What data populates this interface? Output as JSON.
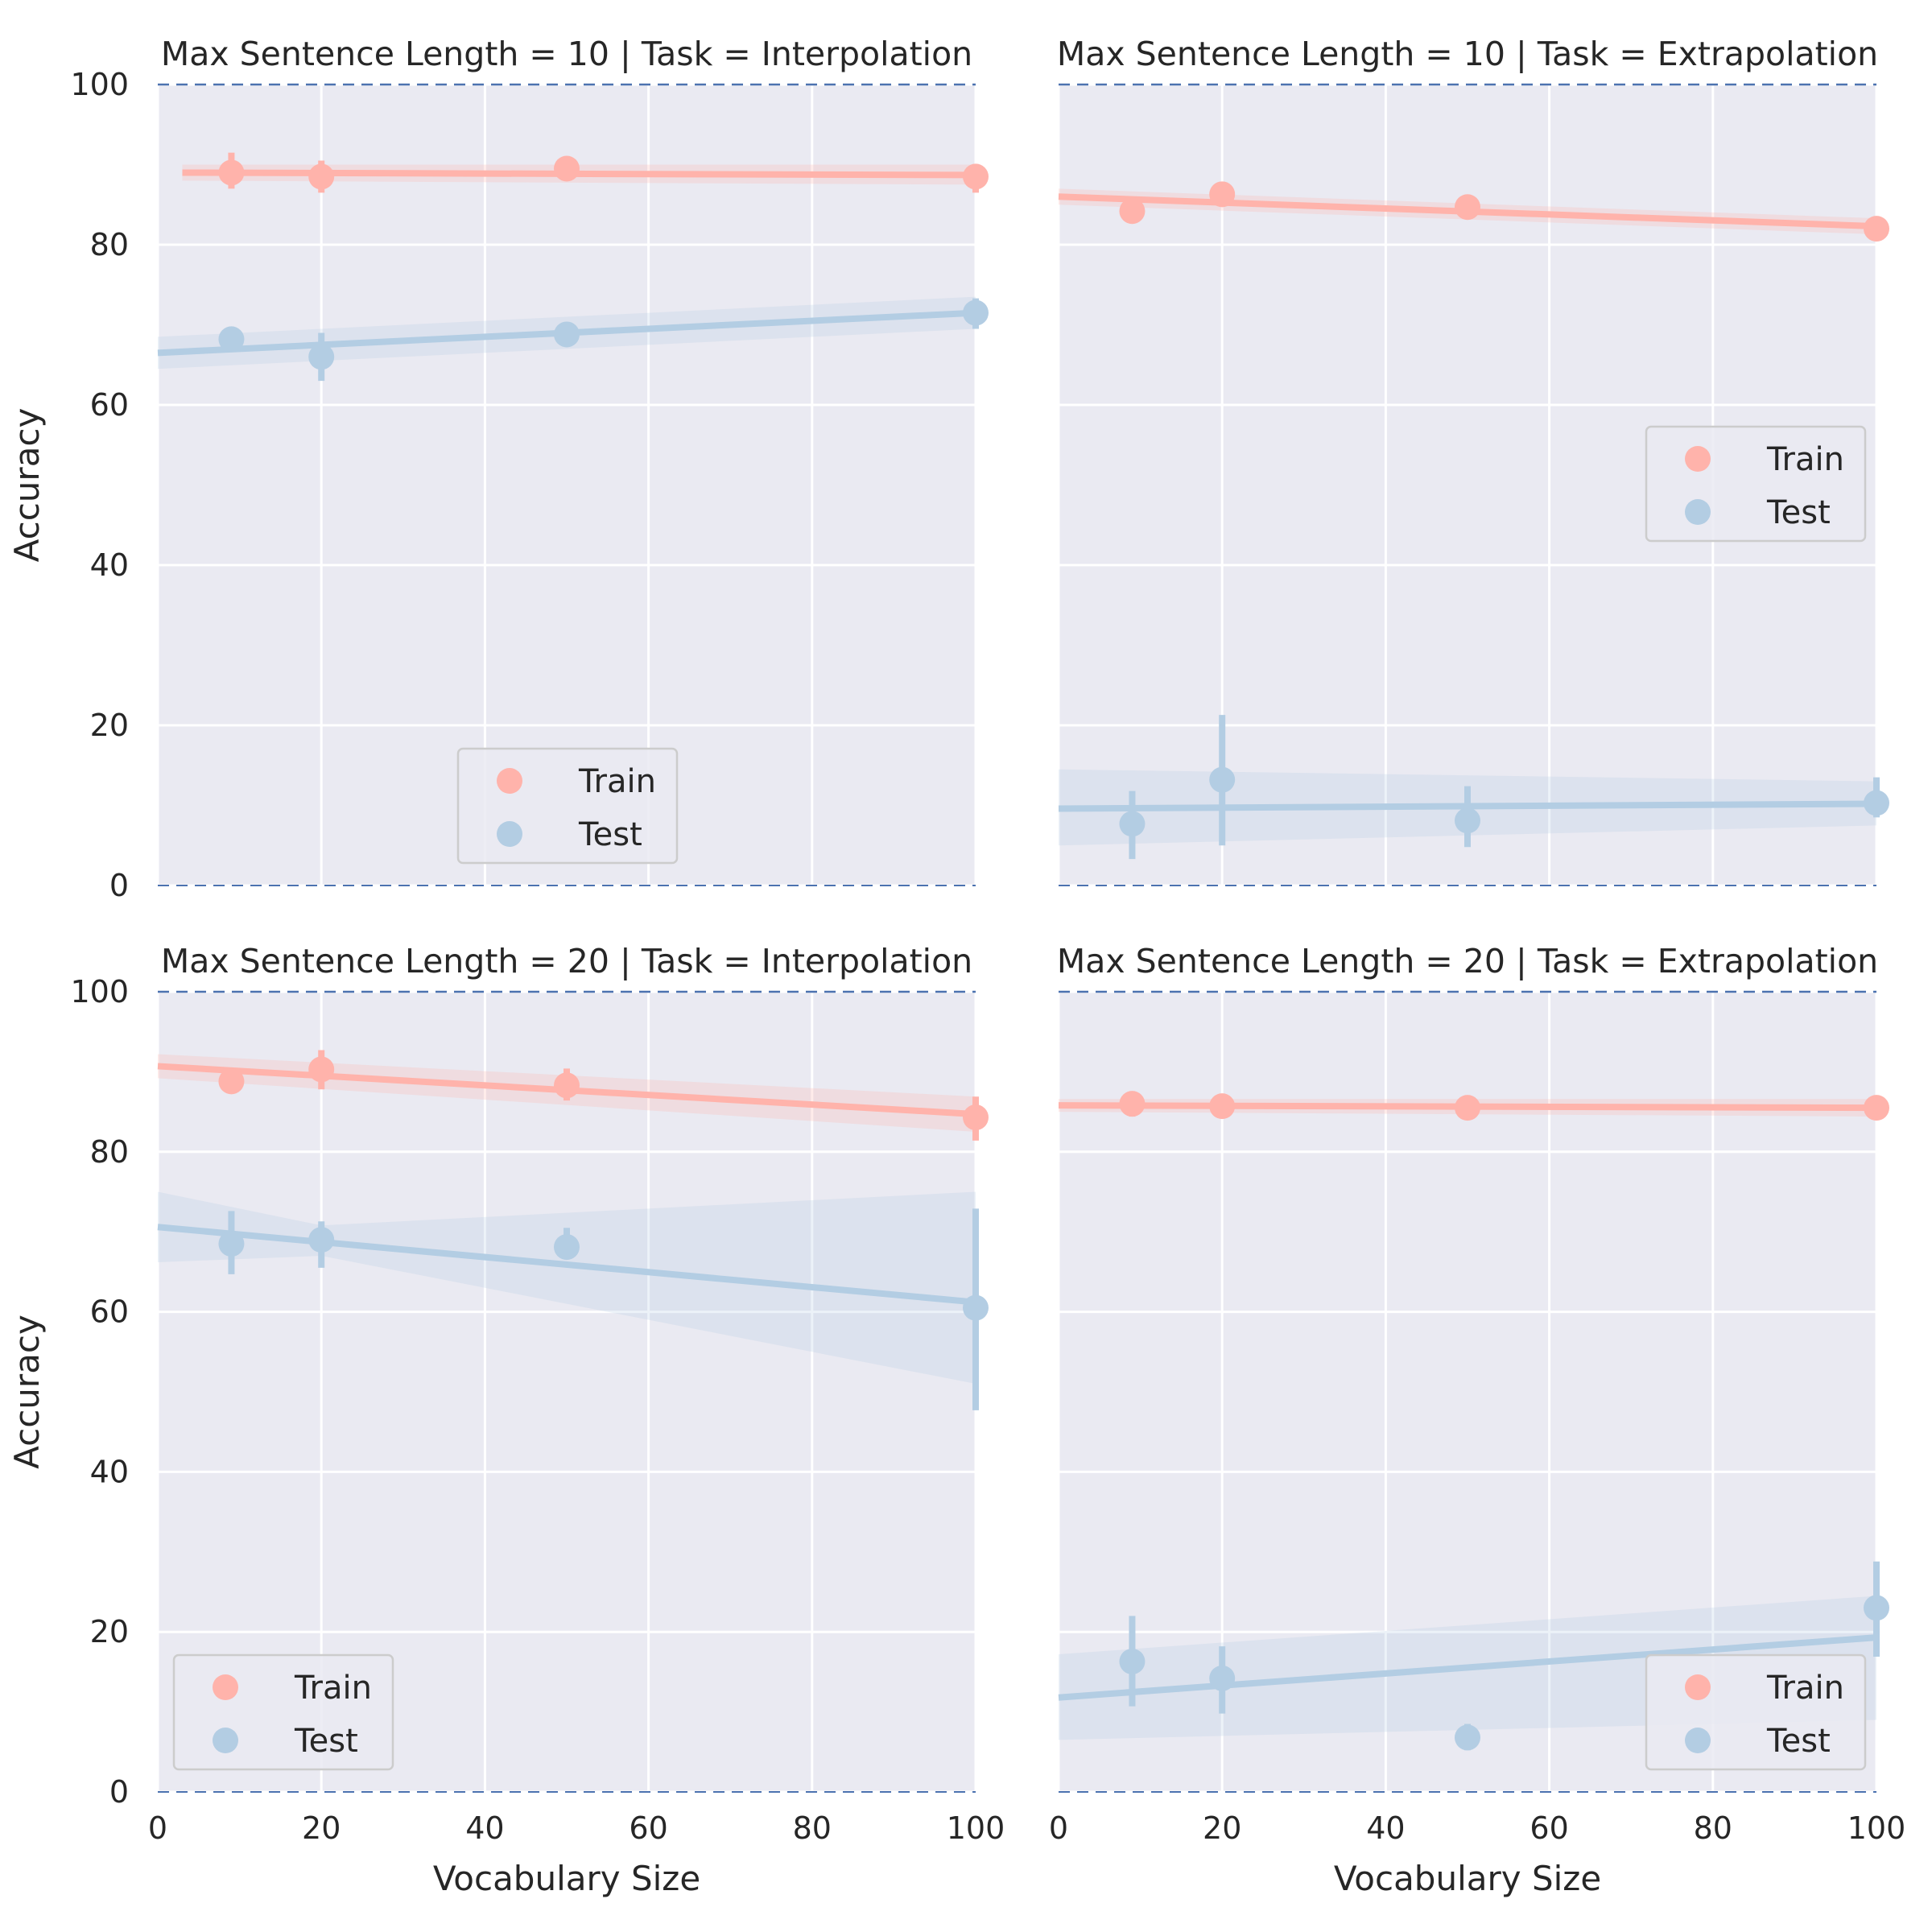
{
  "figure": {
    "ylabel": "Accuracy",
    "xlabel": "Vocabulary Size",
    "reference_line": 100,
    "colors": {
      "train": "#ffb3ab",
      "test": "#b3cde3",
      "background": "#eaeaf2",
      "grid": "#ffffff",
      "dashed": "#4c72b0"
    }
  },
  "chart_data": [
    {
      "type": "scatter",
      "title": "Max Sentence Length = 10 | Task = Interpolation",
      "xlim": [
        0,
        100
      ],
      "ylim": [
        0,
        100
      ],
      "xticks": [
        0,
        20,
        40,
        60,
        80,
        100
      ],
      "yticks": [
        0,
        20,
        40,
        60,
        80,
        100
      ],
      "legend": {
        "position": "lower-center",
        "entries": [
          "Train",
          "Test"
        ]
      },
      "series": [
        {
          "name": "Train",
          "x": [
            9,
            20,
            50,
            100
          ],
          "y": [
            89,
            88.5,
            89.5,
            88.5
          ],
          "err_low": [
            87,
            86.5,
            88.5,
            86.5
          ],
          "err_high": [
            91.5,
            90.5,
            90.5,
            90
          ],
          "fit": [
            [
              3,
              89
            ],
            [
              100,
              88.7
            ]
          ],
          "band": [
            [
              3,
              88,
              90
            ],
            [
              100,
              87.5,
              90
            ]
          ]
        },
        {
          "name": "Test",
          "x": [
            9,
            20,
            50,
            100
          ],
          "y": [
            68.2,
            66,
            68.8,
            71.5
          ],
          "err_low": [
            67,
            63,
            67.5,
            69.5
          ],
          "err_high": [
            69.5,
            69,
            70,
            73.3
          ],
          "fit": [
            [
              0,
              66.5
            ],
            [
              100,
              71.5
            ]
          ],
          "band": [
            [
              0,
              64.5,
              68.5
            ],
            [
              100,
              69.5,
              73.5
            ]
          ]
        }
      ]
    },
    {
      "type": "scatter",
      "title": "Max Sentence Length = 10 | Task = Extrapolation",
      "xlim": [
        0,
        100
      ],
      "ylim": [
        0,
        100
      ],
      "xticks": [
        0,
        20,
        40,
        60,
        80,
        100
      ],
      "yticks": [
        0,
        20,
        40,
        60,
        80,
        100
      ],
      "legend": {
        "position": "center-right",
        "entries": [
          "Train",
          "Test"
        ]
      },
      "series": [
        {
          "name": "Train",
          "x": [
            9,
            20,
            50,
            100
          ],
          "y": [
            84.2,
            86.3,
            84.7,
            82
          ],
          "err_low": [
            83,
            85.2,
            83.8,
            81
          ],
          "err_high": [
            85.4,
            87.4,
            85.6,
            83
          ],
          "fit": [
            [
              0,
              86
            ],
            [
              100,
              82.3
            ]
          ],
          "band": [
            [
              0,
              85,
              87
            ],
            [
              100,
              81.3,
              83.3
            ]
          ]
        },
        {
          "name": "Test",
          "x": [
            9,
            20,
            50,
            100
          ],
          "y": [
            7.7,
            13.2,
            8.1,
            10.3
          ],
          "err_low": [
            3.3,
            5,
            4.8,
            8.5
          ],
          "err_high": [
            11.8,
            21.3,
            12.4,
            13.5
          ],
          "fit": [
            [
              0,
              9.6
            ],
            [
              100,
              10.2
            ]
          ],
          "band": [
            [
              0,
              5,
              14.5
            ],
            [
              100,
              7.5,
              13
            ]
          ]
        }
      ]
    },
    {
      "type": "scatter",
      "title": "Max Sentence Length = 20 | Task = Interpolation",
      "xlim": [
        0,
        100
      ],
      "ylim": [
        0,
        100
      ],
      "xticks": [
        0,
        20,
        40,
        60,
        80,
        100
      ],
      "yticks": [
        0,
        20,
        40,
        60,
        80,
        100
      ],
      "legend": {
        "position": "lower-left",
        "entries": [
          "Train",
          "Test"
        ]
      },
      "series": [
        {
          "name": "Train",
          "x": [
            9,
            20,
            50,
            100
          ],
          "y": [
            88.8,
            90.3,
            88.3,
            84.3
          ],
          "err_low": [
            88,
            87.8,
            86.4,
            81.4
          ],
          "err_high": [
            89.6,
            92.7,
            90.4,
            86.9
          ],
          "fit": [
            [
              0,
              90.7
            ],
            [
              100,
              84.7
            ]
          ],
          "band": [
            [
              0,
              89.2,
              92.2
            ],
            [
              100,
              82.5,
              86.9
            ]
          ]
        },
        {
          "name": "Test",
          "x": [
            9,
            20,
            50,
            100
          ],
          "y": [
            68.5,
            69,
            68.1,
            60.5
          ],
          "err_low": [
            64.7,
            65.5,
            66.6,
            47.7
          ],
          "err_high": [
            72.6,
            71.3,
            70.5,
            72.9
          ],
          "fit": [
            [
              0,
              70.6
            ],
            [
              100,
              61.2
            ]
          ],
          "band": [
            [
              0,
              66.2,
              75
            ],
            [
              20,
              67,
              70.8
            ],
            [
              100,
              51,
              75
            ]
          ]
        }
      ]
    },
    {
      "type": "scatter",
      "title": "Max Sentence Length = 20 | Task = Extrapolation",
      "xlim": [
        0,
        100
      ],
      "ylim": [
        0,
        100
      ],
      "xticks": [
        0,
        20,
        40,
        60,
        80,
        100
      ],
      "yticks": [
        0,
        20,
        40,
        60,
        80,
        100
      ],
      "legend": {
        "position": "lower-right",
        "entries": [
          "Train",
          "Test"
        ]
      },
      "series": [
        {
          "name": "Train",
          "x": [
            9,
            20,
            50,
            100
          ],
          "y": [
            86,
            85.7,
            85.5,
            85.5
          ],
          "err_low": [
            84.4,
            84.8,
            84,
            84
          ],
          "err_high": [
            87.5,
            86.6,
            87,
            87
          ],
          "fit": [
            [
              0,
              85.8
            ],
            [
              100,
              85.5
            ]
          ],
          "band": [
            [
              0,
              85,
              86.6
            ],
            [
              100,
              84.4,
              86.6
            ]
          ]
        },
        {
          "name": "Test",
          "x": [
            9,
            20,
            50,
            100
          ],
          "y": [
            16.3,
            14.2,
            6.8,
            23
          ],
          "err_low": [
            10.7,
            9.8,
            5.2,
            16.9
          ],
          "err_high": [
            22,
            18.2,
            8.5,
            28.8
          ],
          "fit": [
            [
              0,
              11.8
            ],
            [
              100,
              19.3
            ]
          ],
          "band": [
            [
              0,
              6.5,
              17.2
            ],
            [
              100,
              9,
              24.5
            ]
          ]
        }
      ]
    }
  ]
}
